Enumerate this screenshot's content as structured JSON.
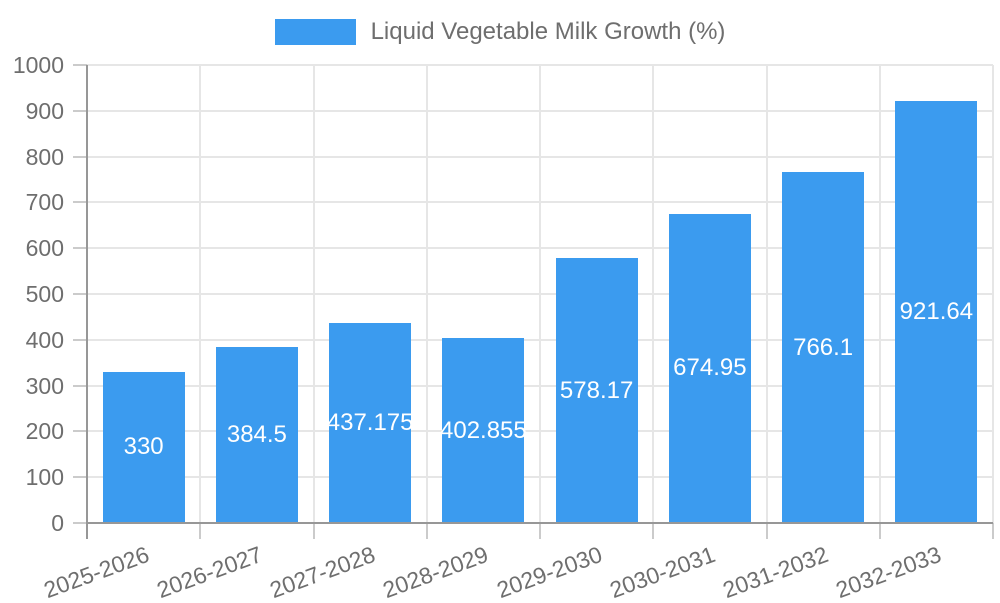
{
  "legend": {
    "label": "Liquid Vegetable Milk Growth (%)"
  },
  "colors": {
    "bar": "#3b9bef",
    "axis_text": "#6e6e6e",
    "grid_line": "#e6e6e6",
    "axis_line": "#979797",
    "tick_mark": "#cbcbcb",
    "bar_label_text": "#ffffff",
    "background": "#ffffff"
  },
  "chart_data": {
    "type": "bar",
    "title": "",
    "legend_label": "Liquid Vegetable Milk Growth (%)",
    "legend_position": "top-center",
    "categories": [
      "2025-2026",
      "2026-2027",
      "2027-2028",
      "2028-2029",
      "2029-2030",
      "2030-2031",
      "2031-2032",
      "2032-2033"
    ],
    "series": [
      {
        "name": "Liquid Vegetable Milk Growth (%)",
        "values": [
          330,
          384.5,
          437.175,
          402.855,
          578.17,
          674.95,
          766.1,
          921.64
        ],
        "value_labels": [
          "330",
          "384.5",
          "437.175",
          "402.855",
          "578.17",
          "674.95",
          "766.1",
          "921.64"
        ]
      }
    ],
    "ylim": [
      0,
      1000
    ],
    "ytick_step": 100,
    "ytick_labels": [
      "0",
      "100",
      "200",
      "300",
      "400",
      "500",
      "600",
      "700",
      "800",
      "900",
      "1000"
    ],
    "grid": "on",
    "xlabel": "",
    "ylabel": "",
    "value_labels_position": "inside-center",
    "xtick_rotation_deg": -20
  }
}
